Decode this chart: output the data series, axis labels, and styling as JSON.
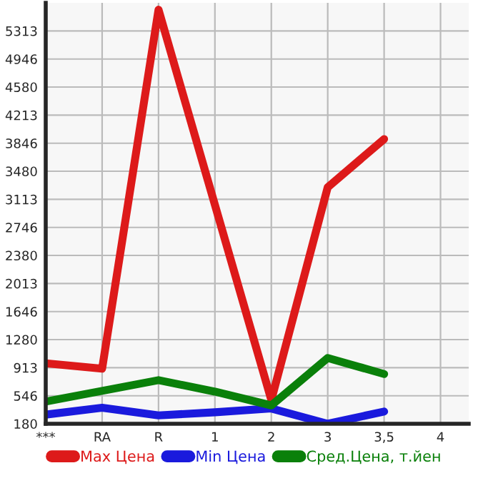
{
  "chart_data": {
    "type": "line",
    "categories": [
      "***",
      "RA",
      "R",
      "1",
      "2",
      "3",
      "3,5",
      "4"
    ],
    "series": [
      {
        "name": "Max Цена",
        "color": "#dd1a1a",
        "values": [
          970,
          900,
          5590,
          null,
          490,
          3270,
          3900,
          null
        ]
      },
      {
        "name": "Min Цена",
        "color": "#1a1add",
        "values": [
          300,
          390,
          290,
          330,
          380,
          180,
          340,
          null
        ]
      },
      {
        "name": "Сред.Цена, т.йен",
        "color": "#0a800a",
        "values": [
          470,
          610,
          750,
          600,
          420,
          1040,
          830,
          null
        ]
      }
    ],
    "ylim": [
      180,
      5680
    ],
    "yticks": [
      180,
      546,
      913,
      1280,
      1646,
      2013,
      2380,
      2746,
      3113,
      3480,
      3846,
      4213,
      4580,
      4946,
      5313
    ],
    "grid": true,
    "legend": "bottom",
    "marker": "none",
    "line_style": "solid"
  }
}
